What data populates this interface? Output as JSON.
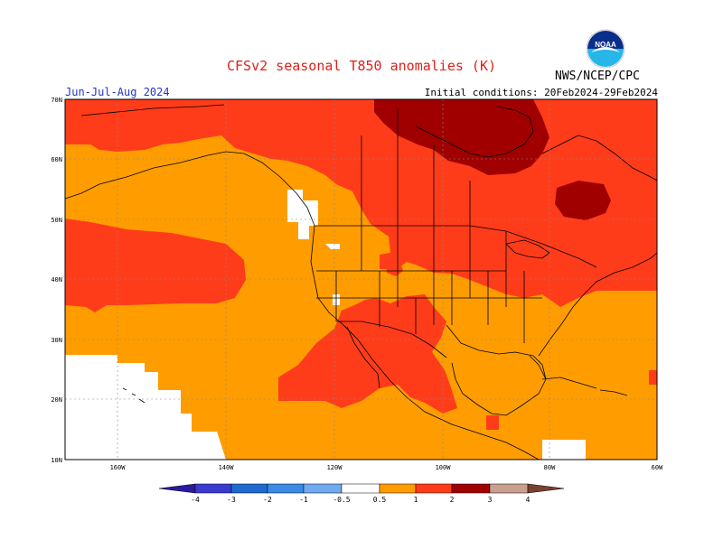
{
  "title": "CFSv2 seasonal T850 anomalies (K)",
  "agency": "NWS/NCEP/CPC",
  "logo_text": "NOAA",
  "season": "Jun-Jul-Aug 2024",
  "initial_conditions": "Initial conditions: 20Feb2024-29Feb2024",
  "lat_labels": [
    "70N",
    "60N",
    "50N",
    "40N",
    "30N",
    "20N",
    "10N"
  ],
  "lon_labels": [
    "160W",
    "140W",
    "120W",
    "100W",
    "80W",
    "60W"
  ],
  "colorbar": {
    "labels": [
      "-4",
      "-3",
      "-2",
      "-1",
      "-0.5",
      "0.5",
      "1",
      "2",
      "3",
      "4"
    ],
    "colors": [
      "#2a1aa0",
      "#3a3ad0",
      "#1e6ad0",
      "#3a8ae6",
      "#70aaf0",
      "#ffffff",
      "#ff9d00",
      "#ff3c1a",
      "#a00000",
      "#c8a090",
      "#7a4030"
    ]
  },
  "anomaly_colors": {
    "0.5-1": "#ff9d00",
    "1-2": "#ff3c1a",
    "2-3": "#a00000",
    "below-0.5": "#ffffff"
  }
}
